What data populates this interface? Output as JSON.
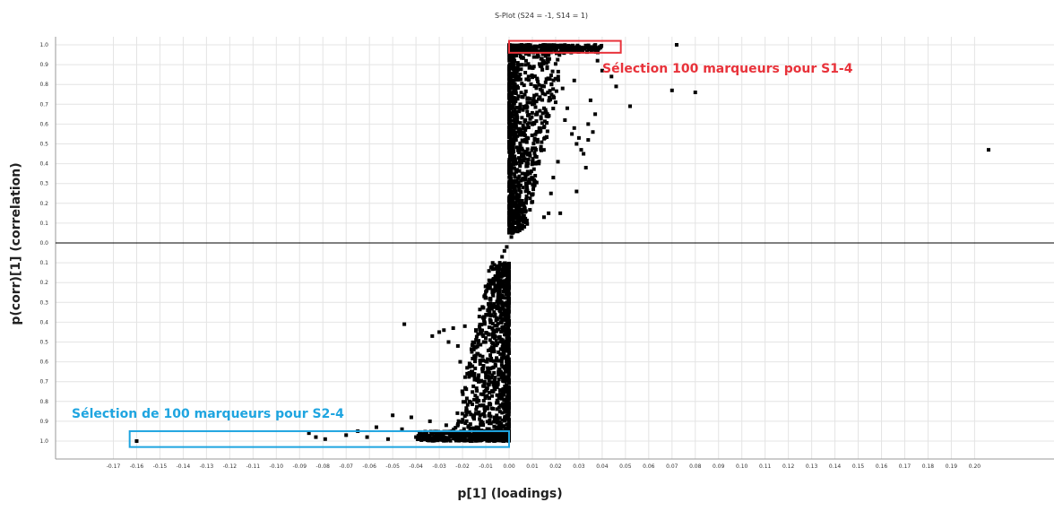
{
  "chart_data": {
    "type": "scatter",
    "title": "S-Plot (S24 = -1, S14 = 1)",
    "xlabel": "p[1] (loadings)",
    "ylabel": "p(corr)[1] (correlation)",
    "xlim": [
      -0.18,
      0.21
    ],
    "ylim": [
      -1.1,
      1.1
    ],
    "grid": true,
    "x_ticks": [
      "-0.17",
      "-0.16",
      "-0.15",
      "-0.14",
      "-0.13",
      "-0.12",
      "-0.11",
      "-0.10",
      "-0.09",
      "-0.08",
      "-0.07",
      "-0.06",
      "-0.05",
      "-0.04",
      "-0.03",
      "-0.02",
      "-0.01",
      "0.00",
      "0.01",
      "0.02",
      "0.03",
      "0.04",
      "0.05",
      "0.06",
      "0.07",
      "0.08",
      "0.09",
      "0.10",
      "0.11",
      "0.12",
      "0.13",
      "0.14",
      "0.15",
      "0.16",
      "0.17",
      "0.18",
      "0.19",
      "0.20"
    ],
    "y_ticks": [
      "1.0",
      "0.9",
      "0.8",
      "0.7",
      "0.6",
      "0.5",
      "0.4",
      "0.3",
      "0.2",
      "0.1",
      "0.0",
      "0.1",
      "0.2",
      "0.3",
      "0.4",
      "0.5",
      "0.6",
      "0.7",
      "0.8",
      "0.9",
      "1.0"
    ],
    "series": [
      {
        "points": [
          [
            0.206,
            0.47
          ],
          [
            0.072,
            1.0
          ],
          [
            0.08,
            0.76
          ],
          [
            0.07,
            0.77
          ],
          [
            0.052,
            0.69
          ],
          [
            0.046,
            0.79
          ],
          [
            0.044,
            0.84
          ],
          [
            0.037,
            0.65
          ],
          [
            0.036,
            0.56
          ],
          [
            0.034,
            0.6
          ],
          [
            0.033,
            0.38
          ],
          [
            0.031,
            0.47
          ],
          [
            0.03,
            0.53
          ],
          [
            0.029,
            0.5
          ],
          [
            0.028,
            0.58
          ],
          [
            0.027,
            0.55
          ],
          [
            0.034,
            0.52
          ],
          [
            0.032,
            0.45
          ],
          [
            0.035,
            0.72
          ],
          [
            0.029,
            0.26
          ],
          [
            0.022,
            0.15
          ],
          [
            0.017,
            0.15
          ],
          [
            0.015,
            0.13
          ],
          [
            0.018,
            0.25
          ],
          [
            0.019,
            0.33
          ],
          [
            0.021,
            0.41
          ],
          [
            0.024,
            0.62
          ],
          [
            0.025,
            0.68
          ],
          [
            0.02,
            0.71
          ],
          [
            0.016,
            0.64
          ],
          [
            0.013,
            0.58
          ],
          [
            0.011,
            0.52
          ],
          [
            0.009,
            0.44
          ],
          [
            0.008,
            0.36
          ],
          [
            0.006,
            0.28
          ],
          [
            0.005,
            0.2
          ],
          [
            0.004,
            0.15
          ],
          [
            0.003,
            0.1
          ],
          [
            0.002,
            0.06
          ],
          [
            0.001,
            0.03
          ],
          [
            0.012,
            0.83
          ],
          [
            0.014,
            0.89
          ],
          [
            0.017,
            0.95
          ],
          [
            0.022,
            0.99
          ],
          [
            0.026,
            0.99
          ],
          [
            0.03,
            0.99
          ],
          [
            0.033,
            0.99
          ],
          [
            0.038,
            0.92
          ],
          [
            0.04,
            0.87
          ],
          [
            0.028,
            0.82
          ],
          [
            0.023,
            0.78
          ],
          [
            0.019,
            0.74
          ],
          [
            0.015,
            0.79
          ],
          [
            0.01,
            0.7
          ],
          [
            0.007,
            0.62
          ],
          [
            -0.16,
            -1.0
          ],
          [
            -0.083,
            -0.98
          ],
          [
            -0.079,
            -0.99
          ],
          [
            -0.07,
            -0.97
          ],
          [
            -0.061,
            -0.98
          ],
          [
            -0.052,
            -0.99
          ],
          [
            -0.046,
            -0.94
          ],
          [
            -0.04,
            -0.98
          ],
          [
            -0.036,
            -0.96
          ],
          [
            -0.03,
            -0.97
          ],
          [
            -0.024,
            -0.95
          ],
          [
            -0.045,
            -0.41
          ],
          [
            -0.033,
            -0.47
          ],
          [
            -0.03,
            -0.45
          ],
          [
            -0.028,
            -0.44
          ],
          [
            -0.024,
            -0.43
          ],
          [
            -0.022,
            -0.52
          ],
          [
            -0.026,
            -0.5
          ],
          [
            -0.019,
            -0.42
          ],
          [
            -0.021,
            -0.6
          ],
          [
            -0.02,
            -0.75
          ],
          [
            -0.018,
            -0.66
          ],
          [
            -0.016,
            -0.55
          ],
          [
            -0.017,
            -0.8
          ],
          [
            -0.015,
            -0.87
          ],
          [
            -0.013,
            -0.7
          ],
          [
            -0.011,
            -0.62
          ],
          [
            -0.01,
            -0.48
          ],
          [
            -0.009,
            -0.36
          ],
          [
            -0.008,
            -0.28
          ],
          [
            -0.006,
            -0.22
          ],
          [
            -0.005,
            -0.15
          ],
          [
            -0.004,
            -0.1
          ],
          [
            -0.003,
            -0.07
          ],
          [
            -0.002,
            -0.04
          ],
          [
            -0.001,
            -0.02
          ],
          [
            -0.012,
            -0.9
          ],
          [
            -0.014,
            -0.93
          ],
          [
            -0.019,
            -0.96
          ],
          [
            -0.027,
            -0.92
          ],
          [
            -0.034,
            -0.9
          ],
          [
            -0.042,
            -0.88
          ],
          [
            -0.05,
            -0.87
          ],
          [
            -0.057,
            -0.93
          ],
          [
            -0.065,
            -0.95
          ],
          [
            -0.086,
            -0.96
          ],
          [
            -0.011,
            -0.82
          ],
          [
            -0.007,
            -0.75
          ]
        ]
      }
    ],
    "dense_clusters": [
      {
        "x": [
          0.0,
          0.04
        ],
        "y": [
          0.96,
          1.0
        ],
        "n": 350
      },
      {
        "x": [
          0.0,
          0.025
        ],
        "y": [
          0.05,
          0.99
        ],
        "n": 900
      },
      {
        "x": [
          -0.04,
          0.0
        ],
        "y": [
          -1.0,
          -0.95
        ],
        "n": 550
      },
      {
        "x": [
          -0.025,
          0.0
        ],
        "y": [
          -0.98,
          -0.1
        ],
        "n": 1000
      }
    ],
    "annotations": [
      {
        "text": "Sélection 100 marqueurs pour S1-4",
        "color": "#e8323a",
        "box_x": [
          0.0,
          0.048
        ],
        "box_y": [
          0.96,
          1.02
        ]
      },
      {
        "text": "Sélection de 100 marqueurs pour S2-4",
        "color": "#1fa5e0",
        "box_x": [
          -0.163,
          0.0
        ],
        "box_y": [
          -1.03,
          -0.95
        ]
      }
    ],
    "reference_lines": {
      "horizontal_y": 0.0,
      "vertical_x": 0.0
    }
  }
}
